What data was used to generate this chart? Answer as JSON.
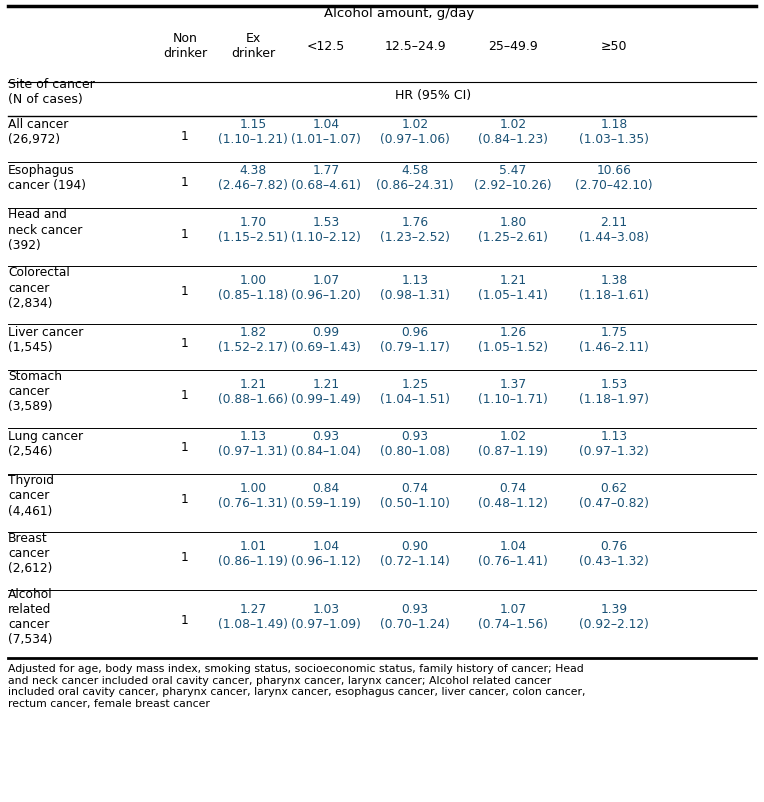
{
  "title": "Alcohol amount, g/day",
  "col_headers": [
    "Non\ndrinker",
    "Ex\ndrinker",
    "<12.5",
    "12.5–24.9",
    "25–49.9",
    "≥50"
  ],
  "subheader_left": "Site of cancer\n(N of cases)",
  "subheader_right": "HR (95% CI)",
  "rows": [
    {
      "label": "All cancer\n(26,972)",
      "label_lines": 2,
      "non_drinker": "1",
      "values": [
        "1.15\n(1.10–1.21)",
        "1.04\n(1.01–1.07)",
        "1.02\n(0.97–1.06)",
        "1.02\n(0.84–1.23)",
        "1.18\n(1.03–1.35)"
      ]
    },
    {
      "label": "Esophagus\ncancer (194)",
      "label_lines": 2,
      "non_drinker": "1",
      "values": [
        "4.38\n(2.46–7.82)",
        "1.77\n(0.68–4.61)",
        "4.58\n(0.86–24.31)",
        "5.47\n(2.92–10.26)",
        "10.66\n(2.70–42.10)"
      ]
    },
    {
      "label": "Head and\nneck cancer\n(392)",
      "label_lines": 3,
      "non_drinker": "1",
      "values": [
        "1.70\n(1.15–2.51)",
        "1.53\n(1.10–2.12)",
        "1.76\n(1.23–2.52)",
        "1.80\n(1.25–2.61)",
        "2.11\n(1.44–3.08)"
      ]
    },
    {
      "label": "Colorectal\ncancer\n(2,834)",
      "label_lines": 3,
      "non_drinker": "1",
      "values": [
        "1.00\n(0.85–1.18)",
        "1.07\n(0.96–1.20)",
        "1.13\n(0.98–1.31)",
        "1.21\n(1.05–1.41)",
        "1.38\n(1.18–1.61)"
      ]
    },
    {
      "label": "Liver cancer\n(1,545)",
      "label_lines": 2,
      "non_drinker": "1",
      "values": [
        "1.82\n(1.52–2.17)",
        "0.99\n(0.69–1.43)",
        "0.96\n(0.79–1.17)",
        "1.26\n(1.05–1.52)",
        "1.75\n(1.46–2.11)"
      ]
    },
    {
      "label": "Stomach\ncancer\n(3,589)",
      "label_lines": 3,
      "non_drinker": "1",
      "values": [
        "1.21\n(0.88–1.66)",
        "1.21\n(0.99–1.49)",
        "1.25\n(1.04–1.51)",
        "1.37\n(1.10–1.71)",
        "1.53\n(1.18–1.97)"
      ]
    },
    {
      "label": "Lung cancer\n(2,546)",
      "label_lines": 2,
      "non_drinker": "1",
      "values": [
        "1.13\n(0.97–1.31)",
        "0.93\n(0.84–1.04)",
        "0.93\n(0.80–1.08)",
        "1.02\n(0.87–1.19)",
        "1.13\n(0.97–1.32)"
      ]
    },
    {
      "label": "Thyroid\ncancer\n(4,461)",
      "label_lines": 3,
      "non_drinker": "1",
      "values": [
        "1.00\n(0.76–1.31)",
        "0.84\n(0.59–1.19)",
        "0.74\n(0.50–1.10)",
        "0.74\n(0.48–1.12)",
        "0.62\n(0.47–0.82)"
      ]
    },
    {
      "label": "Breast\ncancer\n(2,612)",
      "label_lines": 3,
      "non_drinker": "1",
      "values": [
        "1.01\n(0.86–1.19)",
        "1.04\n(0.96–1.12)",
        "0.90\n(0.72–1.14)",
        "1.04\n(0.76–1.41)",
        "0.76\n(0.43–1.32)"
      ]
    },
    {
      "label": "Alcohol\nrelated\ncancer\n(7,534)",
      "label_lines": 4,
      "non_drinker": "1",
      "values": [
        "1.27\n(1.08–1.49)",
        "1.03\n(0.97–1.09)",
        "0.93\n(0.70–1.24)",
        "1.07\n(0.74–1.56)",
        "1.39\n(0.92–2.12)"
      ]
    }
  ],
  "footnote": "Adjusted for age, body mass index, smoking status, socioeconomic status, family history of cancer; Head and neck cancer included oral cavity cancer, pharynx cancer, larynx cancer; Alcohol related cancer included oral cavity cancer, pharynx cancer, larynx cancer, esophagus cancer, liver cancer, colon cancer, rectum cancer, female breast cancer",
  "value_color": "#1a5276",
  "label_color": "#000000",
  "header_color": "#000000",
  "bg_color": "#ffffff",
  "font_size_title": 9.5,
  "font_size_header": 9.0,
  "font_size_data": 8.8,
  "font_size_footnote": 7.8
}
